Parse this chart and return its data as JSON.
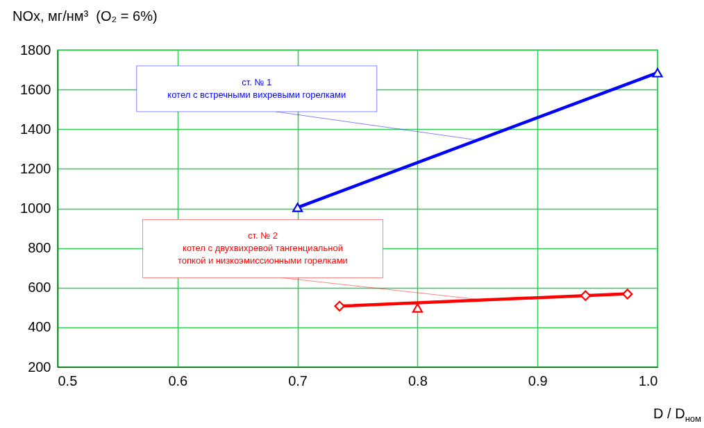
{
  "chart_data": {
    "type": "line",
    "ylabel": "NOx, мг/нм³  (O₂ = 6%)",
    "xlabel": "D / D$_{ном}$",
    "xlim": [
      0.5,
      1.0
    ],
    "xticks": [
      0.5,
      0.6,
      0.7,
      0.8,
      0.9,
      {
        "value": 1.0,
        "label": "1.0"
      }
    ],
    "ylim": [
      200,
      1800
    ],
    "yticks": [
      200,
      400,
      600,
      800,
      1000,
      1200,
      1400,
      1600,
      1800
    ],
    "grid": true,
    "series": [
      {
        "type": "line",
        "color": "#0000ff",
        "marker": "triangle",
        "x": [
          0.7,
          1.0
        ],
        "values": [
          1005,
          1685
        ]
      },
      {
        "type": "line",
        "color": "#ff0000",
        "marker": "none",
        "x": [
          0.735,
          0.975
        ],
        "values": [
          507,
          569
        ]
      },
      {
        "type": "scatter",
        "color": "#ff0000",
        "marker": "diamond",
        "x": [
          0.735,
          0.94,
          0.975
        ],
        "values": [
          507,
          560,
          568
        ]
      },
      {
        "type": "scatter",
        "color": "#ff0000",
        "marker": "triangle",
        "x": [
          0.8
        ],
        "values": [
          498
        ]
      }
    ],
    "annotations": [
      "ст. № 1\nкотел с встречными вихревыми горелками",
      "ст. № 2\nкотел с двухвихревой тангенциальной\nтопкой и низкоэмиссионными горелками"
    ]
  }
}
